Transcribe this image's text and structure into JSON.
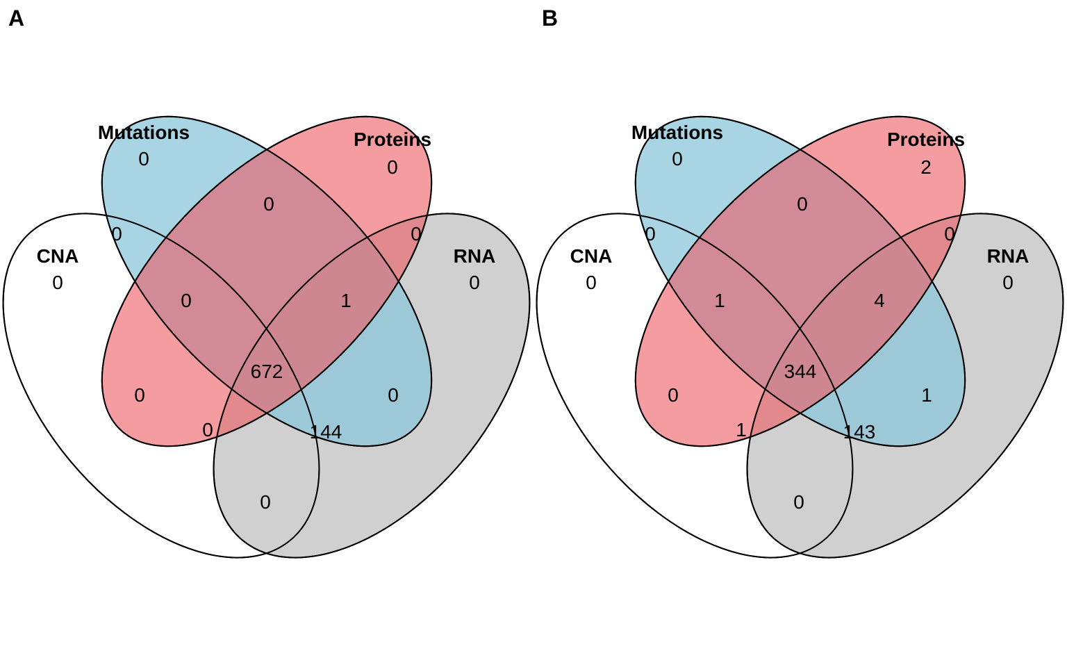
{
  "colors": {
    "mutations": "#9fcfe0",
    "proteins": "#eb6a70",
    "rna": "#d0d0d0",
    "cna": "#ffffff",
    "outline": "#000000"
  },
  "panels": [
    {
      "letter": "A",
      "labels": {
        "mutations": "Mutations",
        "proteins": "Proteins",
        "cna": "CNA",
        "rna": "RNA"
      },
      "counts": {
        "mutations_only": "0",
        "proteins_only": "0",
        "cna_only": "0",
        "rna_only": "0",
        "mut_prot": "0",
        "mut_cna": "0",
        "prot_rna": "0",
        "mut_prot_cna": "0",
        "mut_prot_rna": "1",
        "all": "672",
        "prot_cna": "0",
        "mut_rna": "0",
        "prot_cna_rna": "0",
        "mut_cna_rna": "144",
        "cna_rna": "0"
      }
    },
    {
      "letter": "B",
      "labels": {
        "mutations": "Mutations",
        "proteins": "Proteins",
        "cna": "CNA",
        "rna": "RNA"
      },
      "counts": {
        "mutations_only": "0",
        "proteins_only": "2",
        "cna_only": "0",
        "rna_only": "0",
        "mut_prot": "0",
        "mut_cna": "0",
        "prot_rna": "0",
        "mut_prot_cna": "1",
        "mut_prot_rna": "4",
        "all": "344",
        "prot_cna": "0",
        "mut_rna": "1",
        "prot_cna_rna": "1",
        "mut_cna_rna": "143",
        "cna_rna": "0"
      }
    }
  ]
}
